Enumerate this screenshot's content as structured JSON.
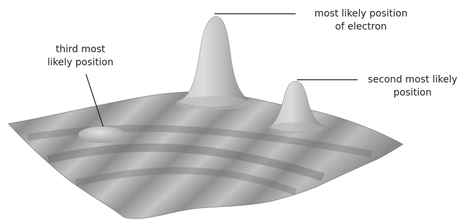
{
  "labels": {
    "main": {
      "line1": "most likely position",
      "line2": "of electron"
    },
    "second": {
      "line1": "second most likely",
      "line2": "position"
    },
    "third": {
      "line1": "third most",
      "line2": "likely position"
    }
  },
  "colors": {
    "surface_light": "#d9d9d9",
    "surface_mid": "#a9a9a9",
    "surface_dark": "#6f6f6f",
    "leader_line": "#111111",
    "text": "#222222"
  }
}
